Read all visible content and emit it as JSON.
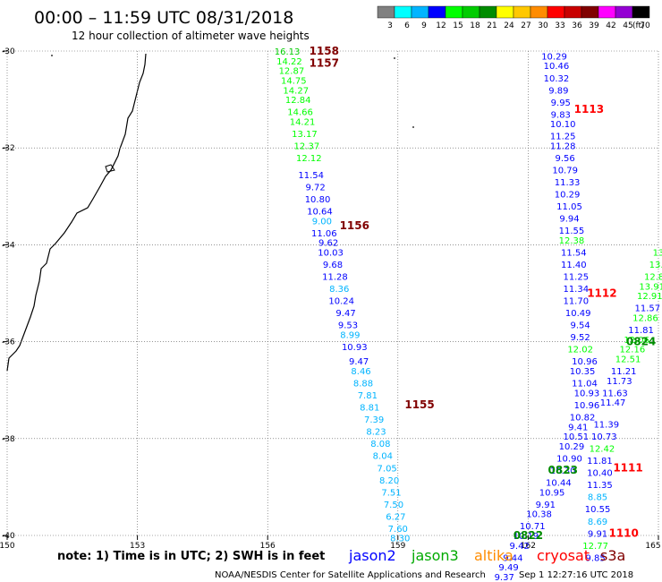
{
  "title": "00:00 – 11:59 UTC 08/31/2018",
  "subtitle": "12 hour collection of altimeter wave heights",
  "legend": {
    "unit": "(ft)",
    "bins": [
      {
        "label": "3",
        "color": "#808080"
      },
      {
        "label": "6",
        "color": "#00ffff"
      },
      {
        "label": "9",
        "color": "#00b4ff"
      },
      {
        "label": "12",
        "color": "#0000ff"
      },
      {
        "label": "15",
        "color": "#00ff00"
      },
      {
        "label": "18",
        "color": "#00cc00"
      },
      {
        "label": "21",
        "color": "#008c00"
      },
      {
        "label": "24",
        "color": "#ffff00"
      },
      {
        "label": "27",
        "color": "#ffc800"
      },
      {
        "label": "30",
        "color": "#ff8c00"
      },
      {
        "label": "33",
        "color": "#ff0000"
      },
      {
        "label": "36",
        "color": "#c80000"
      },
      {
        "label": "39",
        "color": "#800000"
      },
      {
        "label": "42",
        "color": "#ff00ff"
      },
      {
        "label": "45",
        "color": "#9400d3"
      },
      {
        "label": "70",
        "color": "#000000"
      }
    ]
  },
  "axes": {
    "lon_range": [
      150,
      165
    ],
    "lat_range": [
      -40,
      -30
    ],
    "x_ticks": [
      "150",
      "153",
      "156",
      "159",
      "162",
      "165"
    ],
    "y_ticks": [
      "-30",
      "-32",
      "-34",
      "-36",
      "-38",
      "-40"
    ]
  },
  "note": "note: 1) Time is in UTC; 2) SWH is in feet",
  "satellites": [
    {
      "name": "jason2",
      "color": "#0000ff"
    },
    {
      "name": "jason3",
      "color": "#00aa00"
    },
    {
      "name": "altika",
      "color": "#ff8c00"
    },
    {
      "name": "cryosat",
      "color": "#ff0000"
    },
    {
      "name": "s3a",
      "color": "#800000"
    }
  ],
  "footer": {
    "credit": "NOAA/NESDIS Center for Satellite Applications and Research",
    "timestamp": "Sep  1 12:27:16 UTC 2018"
  },
  "time_labels": [
    {
      "text": "1158",
      "lon": 157.3,
      "lat": -30.0,
      "color": "#800000"
    },
    {
      "text": "1157",
      "lon": 157.3,
      "lat": -30.25,
      "color": "#800000"
    },
    {
      "text": "1156",
      "lon": 158.0,
      "lat": -33.6,
      "color": "#800000"
    },
    {
      "text": "1155",
      "lon": 159.5,
      "lat": -37.3,
      "color": "#800000"
    },
    {
      "text": "1113",
      "lon": 163.4,
      "lat": -31.2,
      "color": "#ff0000"
    },
    {
      "text": "1112",
      "lon": 163.7,
      "lat": -35.0,
      "color": "#ff0000"
    },
    {
      "text": "1111",
      "lon": 164.3,
      "lat": -38.6,
      "color": "#ff0000"
    },
    {
      "text": "1110",
      "lon": 164.2,
      "lat": -39.95,
      "color": "#ff0000"
    },
    {
      "text": "0824",
      "lon": 164.6,
      "lat": -36.0,
      "color": "#008c00"
    },
    {
      "text": "0823",
      "lon": 162.8,
      "lat": -38.65,
      "color": "#008c00"
    },
    {
      "text": "0822",
      "lon": 162.0,
      "lat": -40.0,
      "color": "#008c00"
    }
  ],
  "swh_points": [
    {
      "text": "16.13",
      "lon": 156.45,
      "lat": -30.0,
      "color": "#00cc00"
    },
    {
      "text": "14.22",
      "lon": 156.5,
      "lat": -30.2,
      "color": "#00ff00"
    },
    {
      "text": "12.87",
      "lon": 156.55,
      "lat": -30.4,
      "color": "#00ff00"
    },
    {
      "text": "14.75",
      "lon": 156.6,
      "lat": -30.6,
      "color": "#00ff00"
    },
    {
      "text": "14.27",
      "lon": 156.65,
      "lat": -30.8,
      "color": "#00ff00"
    },
    {
      "text": "12.84",
      "lon": 156.7,
      "lat": -31.0,
      "color": "#00ff00"
    },
    {
      "text": "14.66",
      "lon": 156.75,
      "lat": -31.25,
      "color": "#00ff00"
    },
    {
      "text": "14.21",
      "lon": 156.8,
      "lat": -31.45,
      "color": "#00ff00"
    },
    {
      "text": "13.17",
      "lon": 156.85,
      "lat": -31.7,
      "color": "#00ff00"
    },
    {
      "text": "12.37",
      "lon": 156.9,
      "lat": -31.95,
      "color": "#00ff00"
    },
    {
      "text": "12.12",
      "lon": 156.95,
      "lat": -32.2,
      "color": "#00ff00"
    },
    {
      "text": "11.54",
      "lon": 157.0,
      "lat": -32.55,
      "color": "#0000ff"
    },
    {
      "text": "9.72",
      "lon": 157.1,
      "lat": -32.8,
      "color": "#0000ff"
    },
    {
      "text": "10.80",
      "lon": 157.15,
      "lat": -33.05,
      "color": "#0000ff"
    },
    {
      "text": "10.64",
      "lon": 157.2,
      "lat": -33.3,
      "color": "#0000ff"
    },
    {
      "text": "9.00",
      "lon": 157.25,
      "lat": -33.5,
      "color": "#00b4ff"
    },
    {
      "text": "11.06",
      "lon": 157.3,
      "lat": -33.75,
      "color": "#0000ff"
    },
    {
      "text": "9.62",
      "lon": 157.4,
      "lat": -33.95,
      "color": "#0000ff"
    },
    {
      "text": "10.03",
      "lon": 157.45,
      "lat": -34.15,
      "color": "#0000ff"
    },
    {
      "text": "9.68",
      "lon": 157.5,
      "lat": -34.4,
      "color": "#0000ff"
    },
    {
      "text": "11.28",
      "lon": 157.55,
      "lat": -34.65,
      "color": "#0000ff"
    },
    {
      "text": "8.36",
      "lon": 157.65,
      "lat": -34.9,
      "color": "#00b4ff"
    },
    {
      "text": "10.24",
      "lon": 157.7,
      "lat": -35.15,
      "color": "#0000ff"
    },
    {
      "text": "9.47",
      "lon": 157.8,
      "lat": -35.4,
      "color": "#0000ff"
    },
    {
      "text": "9.53",
      "lon": 157.85,
      "lat": -35.65,
      "color": "#0000ff"
    },
    {
      "text": "8.99",
      "lon": 157.9,
      "lat": -35.85,
      "color": "#00b4ff"
    },
    {
      "text": "10.93",
      "lon": 158.0,
      "lat": -36.1,
      "color": "#0000ff"
    },
    {
      "text": "9.47",
      "lon": 158.1,
      "lat": -36.4,
      "color": "#0000ff"
    },
    {
      "text": "8.46",
      "lon": 158.15,
      "lat": -36.6,
      "color": "#00b4ff"
    },
    {
      "text": "8.88",
      "lon": 158.2,
      "lat": -36.85,
      "color": "#00b4ff"
    },
    {
      "text": "7.81",
      "lon": 158.3,
      "lat": -37.1,
      "color": "#00b4ff"
    },
    {
      "text": "8.81",
      "lon": 158.35,
      "lat": -37.35,
      "color": "#00b4ff"
    },
    {
      "text": "7.39",
      "lon": 158.45,
      "lat": -37.6,
      "color": "#00b4ff"
    },
    {
      "text": "8.23",
      "lon": 158.5,
      "lat": -37.85,
      "color": "#00b4ff"
    },
    {
      "text": "8.08",
      "lon": 158.6,
      "lat": -38.1,
      "color": "#00b4ff"
    },
    {
      "text": "8.04",
      "lon": 158.65,
      "lat": -38.35,
      "color": "#00b4ff"
    },
    {
      "text": "7.05",
      "lon": 158.75,
      "lat": -38.6,
      "color": "#00b4ff"
    },
    {
      "text": "8.20",
      "lon": 158.8,
      "lat": -38.85,
      "color": "#00b4ff"
    },
    {
      "text": "7.51",
      "lon": 158.85,
      "lat": -39.1,
      "color": "#00b4ff"
    },
    {
      "text": "7.50",
      "lon": 158.9,
      "lat": -39.35,
      "color": "#00b4ff"
    },
    {
      "text": "6.27",
      "lon": 158.95,
      "lat": -39.6,
      "color": "#00b4ff"
    },
    {
      "text": "7.60",
      "lon": 159.0,
      "lat": -39.85,
      "color": "#00b4ff"
    },
    {
      "text": "8.30",
      "lon": 159.05,
      "lat": -40.05,
      "color": "#00b4ff"
    },
    {
      "text": "10.29",
      "lon": 162.6,
      "lat": -30.1,
      "color": "#0000ff"
    },
    {
      "text": "10.46",
      "lon": 162.65,
      "lat": -30.3,
      "color": "#0000ff"
    },
    {
      "text": "10.32",
      "lon": 162.65,
      "lat": -30.55,
      "color": "#0000ff"
    },
    {
      "text": "9.89",
      "lon": 162.7,
      "lat": -30.8,
      "color": "#0000ff"
    },
    {
      "text": "9.95",
      "lon": 162.75,
      "lat": -31.05,
      "color": "#0000ff"
    },
    {
      "text": "9.83",
      "lon": 162.75,
      "lat": -31.3,
      "color": "#0000ff"
    },
    {
      "text": "10.10",
      "lon": 162.8,
      "lat": -31.5,
      "color": "#0000ff"
    },
    {
      "text": "11.25",
      "lon": 162.8,
      "lat": -31.75,
      "color": "#0000ff"
    },
    {
      "text": "11.28",
      "lon": 162.8,
      "lat": -31.95,
      "color": "#0000ff"
    },
    {
      "text": "9.56",
      "lon": 162.85,
      "lat": -32.2,
      "color": "#0000ff"
    },
    {
      "text": "10.79",
      "lon": 162.85,
      "lat": -32.45,
      "color": "#0000ff"
    },
    {
      "text": "11.33",
      "lon": 162.9,
      "lat": -32.7,
      "color": "#0000ff"
    },
    {
      "text": "10.29",
      "lon": 162.9,
      "lat": -32.95,
      "color": "#0000ff"
    },
    {
      "text": "11.05",
      "lon": 162.95,
      "lat": -33.2,
      "color": "#0000ff"
    },
    {
      "text": "9.94",
      "lon": 162.95,
      "lat": -33.45,
      "color": "#0000ff"
    },
    {
      "text": "11.55",
      "lon": 163.0,
      "lat": -33.7,
      "color": "#0000ff"
    },
    {
      "text": "12.38",
      "lon": 163.0,
      "lat": -33.9,
      "color": "#00ff00"
    },
    {
      "text": "11.54",
      "lon": 163.05,
      "lat": -34.15,
      "color": "#0000ff"
    },
    {
      "text": "11.40",
      "lon": 163.05,
      "lat": -34.4,
      "color": "#0000ff"
    },
    {
      "text": "11.25",
      "lon": 163.1,
      "lat": -34.65,
      "color": "#0000ff"
    },
    {
      "text": "11.34",
      "lon": 163.1,
      "lat": -34.9,
      "color": "#0000ff"
    },
    {
      "text": "11.70",
      "lon": 163.1,
      "lat": -35.15,
      "color": "#0000ff"
    },
    {
      "text": "10.49",
      "lon": 163.15,
      "lat": -35.4,
      "color": "#0000ff"
    },
    {
      "text": "9.54",
      "lon": 163.2,
      "lat": -35.65,
      "color": "#0000ff"
    },
    {
      "text": "9.52",
      "lon": 163.2,
      "lat": -35.9,
      "color": "#0000ff"
    },
    {
      "text": "12.02",
      "lon": 163.2,
      "lat": -36.15,
      "color": "#00ff00"
    },
    {
      "text": "10.96",
      "lon": 163.3,
      "lat": -36.4,
      "color": "#0000ff"
    },
    {
      "text": "10.35",
      "lon": 163.25,
      "lat": -36.6,
      "color": "#0000ff"
    },
    {
      "text": "11.04",
      "lon": 163.3,
      "lat": -36.85,
      "color": "#0000ff"
    },
    {
      "text": "10.93",
      "lon": 163.35,
      "lat": -37.05,
      "color": "#0000ff"
    },
    {
      "text": "10.96",
      "lon": 163.35,
      "lat": -37.3,
      "color": "#0000ff"
    },
    {
      "text": "10.82",
      "lon": 163.25,
      "lat": -37.55,
      "color": "#0000ff"
    },
    {
      "text": "9.41",
      "lon": 163.15,
      "lat": -37.75,
      "color": "#0000ff"
    },
    {
      "text": "10.51",
      "lon": 163.1,
      "lat": -37.95,
      "color": "#0000ff"
    },
    {
      "text": "10.29",
      "lon": 163.0,
      "lat": -38.15,
      "color": "#0000ff"
    },
    {
      "text": "10.90",
      "lon": 162.95,
      "lat": -38.4,
      "color": "#0000ff"
    },
    {
      "text": "10.30",
      "lon": 162.8,
      "lat": -38.65,
      "color": "#0000ff"
    },
    {
      "text": "10.44",
      "lon": 162.7,
      "lat": -38.9,
      "color": "#0000ff"
    },
    {
      "text": "10.95",
      "lon": 162.55,
      "lat": -39.1,
      "color": "#0000ff"
    },
    {
      "text": "9.91",
      "lon": 162.4,
      "lat": -39.35,
      "color": "#0000ff"
    },
    {
      "text": "10.38",
      "lon": 162.25,
      "lat": -39.55,
      "color": "#0000ff"
    },
    {
      "text": "10.71",
      "lon": 162.1,
      "lat": -39.8,
      "color": "#0000ff"
    },
    {
      "text": "10.19",
      "lon": 161.95,
      "lat": -40.0,
      "color": "#0000ff"
    },
    {
      "text": "9.42",
      "lon": 161.8,
      "lat": -40.2,
      "color": "#0000ff"
    },
    {
      "text": "9.44",
      "lon": 161.65,
      "lat": -40.45,
      "color": "#0000ff"
    },
    {
      "text": "9.49",
      "lon": 161.55,
      "lat": -40.65,
      "color": "#0000ff"
    },
    {
      "text": "9.37",
      "lon": 161.45,
      "lat": -40.85,
      "color": "#0000ff"
    },
    {
      "text": "13",
      "lon": 165.0,
      "lat": -34.15,
      "color": "#00ff00"
    },
    {
      "text": "13.",
      "lon": 164.95,
      "lat": -34.4,
      "color": "#00ff00"
    },
    {
      "text": "12.8",
      "lon": 164.9,
      "lat": -34.65,
      "color": "#00ff00"
    },
    {
      "text": "13.91",
      "lon": 164.85,
      "lat": -34.85,
      "color": "#00ff00"
    },
    {
      "text": "12.91",
      "lon": 164.8,
      "lat": -35.05,
      "color": "#00ff00"
    },
    {
      "text": "11.57",
      "lon": 164.75,
      "lat": -35.3,
      "color": "#0000ff"
    },
    {
      "text": "12.86",
      "lon": 164.7,
      "lat": -35.5,
      "color": "#00ff00"
    },
    {
      "text": "11.81",
      "lon": 164.6,
      "lat": -35.75,
      "color": "#0000ff"
    },
    {
      "text": "12.06",
      "lon": 164.5,
      "lat": -35.95,
      "color": "#00ff00"
    },
    {
      "text": "12.16",
      "lon": 164.4,
      "lat": -36.15,
      "color": "#00ff00"
    },
    {
      "text": "12.51",
      "lon": 164.3,
      "lat": -36.35,
      "color": "#00ff00"
    },
    {
      "text": "11.21",
      "lon": 164.2,
      "lat": -36.6,
      "color": "#0000ff"
    },
    {
      "text": "11.73",
      "lon": 164.1,
      "lat": -36.8,
      "color": "#0000ff"
    },
    {
      "text": "11.63",
      "lon": 164.0,
      "lat": -37.05,
      "color": "#0000ff"
    },
    {
      "text": "11.47",
      "lon": 163.95,
      "lat": -37.25,
      "color": "#0000ff"
    },
    {
      "text": "11.39",
      "lon": 163.8,
      "lat": -37.7,
      "color": "#0000ff"
    },
    {
      "text": "10.73",
      "lon": 163.75,
      "lat": -37.95,
      "color": "#0000ff"
    },
    {
      "text": "12.42",
      "lon": 163.7,
      "lat": -38.2,
      "color": "#00ff00"
    },
    {
      "text": "11.81",
      "lon": 163.65,
      "lat": -38.45,
      "color": "#0000ff"
    },
    {
      "text": "10.40",
      "lon": 163.65,
      "lat": -38.7,
      "color": "#0000ff"
    },
    {
      "text": "11.35",
      "lon": 163.65,
      "lat": -38.95,
      "color": "#0000ff"
    },
    {
      "text": "8.85",
      "lon": 163.6,
      "lat": -39.2,
      "color": "#00b4ff"
    },
    {
      "text": "10.55",
      "lon": 163.6,
      "lat": -39.45,
      "color": "#0000ff"
    },
    {
      "text": "8.69",
      "lon": 163.6,
      "lat": -39.7,
      "color": "#00b4ff"
    },
    {
      "text": "9.91",
      "lon": 163.6,
      "lat": -39.95,
      "color": "#0000ff"
    },
    {
      "text": "12.77",
      "lon": 163.55,
      "lat": -40.2,
      "color": "#00ff00"
    },
    {
      "text": "9.85",
      "lon": 163.55,
      "lat": -40.45,
      "color": "#0000ff"
    }
  ]
}
